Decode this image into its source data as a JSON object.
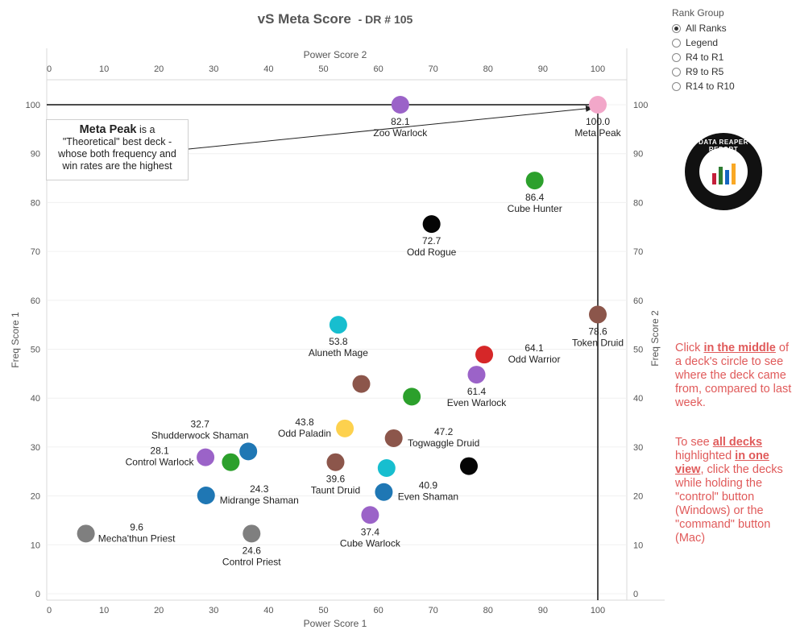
{
  "title": {
    "main": "vS Meta Score",
    "sub": "- DR # 105"
  },
  "rank_group": {
    "label": "Rank Group",
    "options": [
      "All Ranks",
      "Legend",
      "R4 to R1",
      "R9 to R5",
      "R14 to R10"
    ],
    "selected": "All Ranks"
  },
  "annotation": {
    "strong": "Meta Peak",
    "line1": "is a",
    "line2": "\"Theoretical\" best deck -",
    "line3": "whose both frequency and",
    "line4": "win rates are the highest"
  },
  "logo": {
    "text": "DATA REAPER REPORT"
  },
  "info": {
    "p1_a": "Click ",
    "p1_em": "in the middle",
    "p1_b": " of a deck's circle to see where the deck came from, compared to last week.",
    "p2_a": "To see ",
    "p2_em1": "all decks",
    "p2_b": " highlighted ",
    "p2_em2": "in one view",
    "p2_c": ", click the decks while holding the \"control\" button (Windows) or the \"command\" button (Mac)"
  },
  "colors": {
    "purple": "#9b63c8",
    "pink": "#f2a7c9",
    "green": "#2ca02c",
    "black": "#050505",
    "brown": "#8c564b",
    "cyan": "#17becf",
    "blue": "#1f77b4",
    "red": "#d62728",
    "yellow": "#fdd14e",
    "gray": "#7f7f7f"
  },
  "chart_data": {
    "type": "scatter",
    "x_axis_bottom": {
      "label": "Power Score 1",
      "range": [
        0,
        100
      ],
      "ticks": [
        0,
        10,
        20,
        30,
        40,
        50,
        60,
        70,
        80,
        90,
        100
      ]
    },
    "x_axis_top": {
      "label": "Power Score 2",
      "range": [
        0,
        100
      ],
      "ticks": [
        0,
        10,
        20,
        30,
        40,
        50,
        60,
        70,
        80,
        90,
        100
      ]
    },
    "y_axis_left": {
      "label": "Freq Score 1",
      "range": [
        0,
        100
      ],
      "ticks": [
        0,
        10,
        20,
        30,
        40,
        50,
        60,
        70,
        80,
        90,
        100
      ]
    },
    "y_axis_right": {
      "label": "Freq Score 2",
      "range": [
        0,
        100
      ],
      "ticks": [
        0,
        10,
        20,
        30,
        40,
        50,
        60,
        70,
        80,
        90,
        100
      ]
    },
    "reference_lines": {
      "x": 100,
      "y": 100
    },
    "points": [
      {
        "name": "Zoo Warlock",
        "score": "82.1",
        "x": 64,
        "y": 100,
        "color": "purple",
        "label_pos": "below"
      },
      {
        "name": "Meta Peak",
        "score": "100.0",
        "x": 100,
        "y": 100,
        "color": "pink",
        "label_pos": "below"
      },
      {
        "name": "Cube Hunter",
        "score": "86.4",
        "x": 88.5,
        "y": 84.5,
        "color": "green",
        "label_pos": "below"
      },
      {
        "name": "Odd Rogue",
        "score": "72.7",
        "x": 69.7,
        "y": 75.6,
        "color": "black",
        "label_pos": "below"
      },
      {
        "name": "Token Druid",
        "score": "78.6",
        "x": 100,
        "y": 57.1,
        "color": "brown",
        "label_pos": "below"
      },
      {
        "name": "Aluneth Mage",
        "score": "53.8",
        "x": 52.7,
        "y": 55,
        "color": "cyan",
        "label_pos": "below"
      },
      {
        "name": "Odd Warrior",
        "score": "64.1",
        "x": 79.3,
        "y": 48.9,
        "color": "red",
        "label_pos": "right"
      },
      {
        "name": "Even Warlock",
        "score": "61.4",
        "x": 77.9,
        "y": 44.8,
        "color": "purple",
        "label_pos": "below"
      },
      {
        "name": "",
        "score": "",
        "x": 56.9,
        "y": 42.9,
        "color": "brown",
        "label_pos": "none"
      },
      {
        "name": "",
        "score": "",
        "x": 66.1,
        "y": 40.3,
        "color": "green",
        "label_pos": "none"
      },
      {
        "name": "Odd Paladin",
        "score": "43.8",
        "x": 53.9,
        "y": 33.8,
        "color": "yellow",
        "label_pos": "left"
      },
      {
        "name": "Togwaggle Druid",
        "score": "47.2",
        "x": 62.8,
        "y": 31.8,
        "color": "brown",
        "label_pos": "right"
      },
      {
        "name": "Shudderwock Shaman",
        "score": "32.7",
        "x": 36.3,
        "y": 29.1,
        "color": "blue",
        "label_pos": "above-left"
      },
      {
        "name": "Control Warlock",
        "score": "28.1",
        "x": 28.5,
        "y": 27.9,
        "color": "purple",
        "label_pos": "left"
      },
      {
        "name": "",
        "score": "",
        "x": 33.1,
        "y": 26.9,
        "color": "green",
        "label_pos": "none"
      },
      {
        "name": "Taunt Druid",
        "score": "39.6",
        "x": 52.2,
        "y": 26.9,
        "color": "brown",
        "label_pos": "below"
      },
      {
        "name": "",
        "score": "",
        "x": 61.5,
        "y": 25.7,
        "color": "cyan",
        "label_pos": "none"
      },
      {
        "name": "",
        "score": "",
        "x": 76.5,
        "y": 26.1,
        "color": "black",
        "label_pos": "none"
      },
      {
        "name": "Midrange Shaman",
        "score": "24.3",
        "x": 28.6,
        "y": 20.1,
        "color": "blue",
        "label_pos": "right"
      },
      {
        "name": "Even Shaman",
        "score": "40.9",
        "x": 61,
        "y": 20.8,
        "color": "blue",
        "label_pos": "right"
      },
      {
        "name": "Cube Warlock",
        "score": "37.4",
        "x": 58.5,
        "y": 16.1,
        "color": "purple",
        "label_pos": "below"
      },
      {
        "name": "Mecha'thun Priest",
        "score": "9.6",
        "x": 6.7,
        "y": 12.3,
        "color": "gray",
        "label_pos": "right"
      },
      {
        "name": "Control Priest",
        "score": "24.6",
        "x": 36.9,
        "y": 12.3,
        "color": "gray",
        "label_pos": "below"
      }
    ]
  }
}
